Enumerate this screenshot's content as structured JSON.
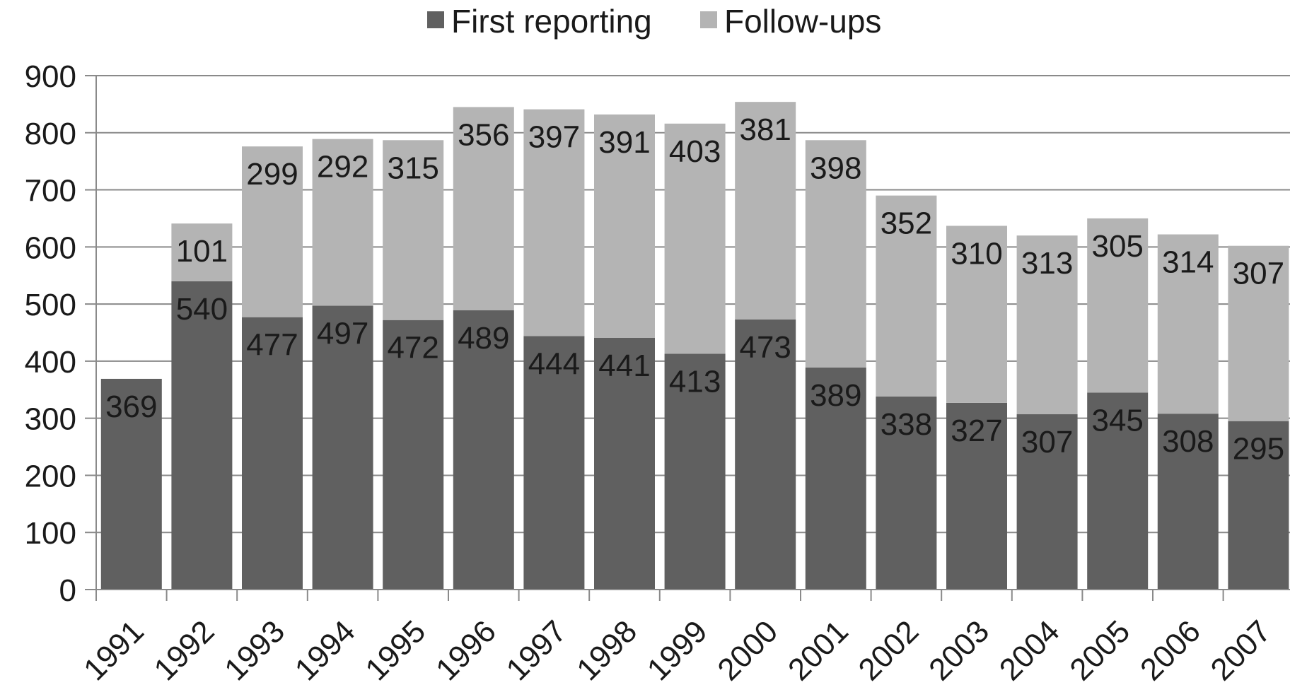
{
  "chart_data": {
    "type": "bar",
    "stacked": true,
    "title": "",
    "xlabel": "",
    "ylabel": "",
    "ylim": [
      0,
      900
    ],
    "yticks": [
      0,
      100,
      200,
      300,
      400,
      500,
      600,
      700,
      800,
      900
    ],
    "grid": true,
    "legend_position": "top-center",
    "categories": [
      "1991",
      "1992",
      "1993",
      "1994",
      "1995",
      "1996",
      "1997",
      "1998",
      "1999",
      "2000",
      "2001",
      "2002",
      "2003",
      "2004",
      "2005",
      "2006",
      "2007"
    ],
    "series": [
      {
        "name": "First reporting",
        "color": "#606060",
        "values": [
          369,
          540,
          477,
          497,
          472,
          489,
          444,
          441,
          413,
          473,
          389,
          338,
          327,
          307,
          345,
          308,
          295
        ]
      },
      {
        "name": "Follow-ups",
        "color": "#b4b4b4",
        "values": [
          null,
          101,
          299,
          292,
          315,
          356,
          397,
          391,
          403,
          381,
          398,
          352,
          310,
          313,
          305,
          314,
          307
        ]
      }
    ]
  }
}
